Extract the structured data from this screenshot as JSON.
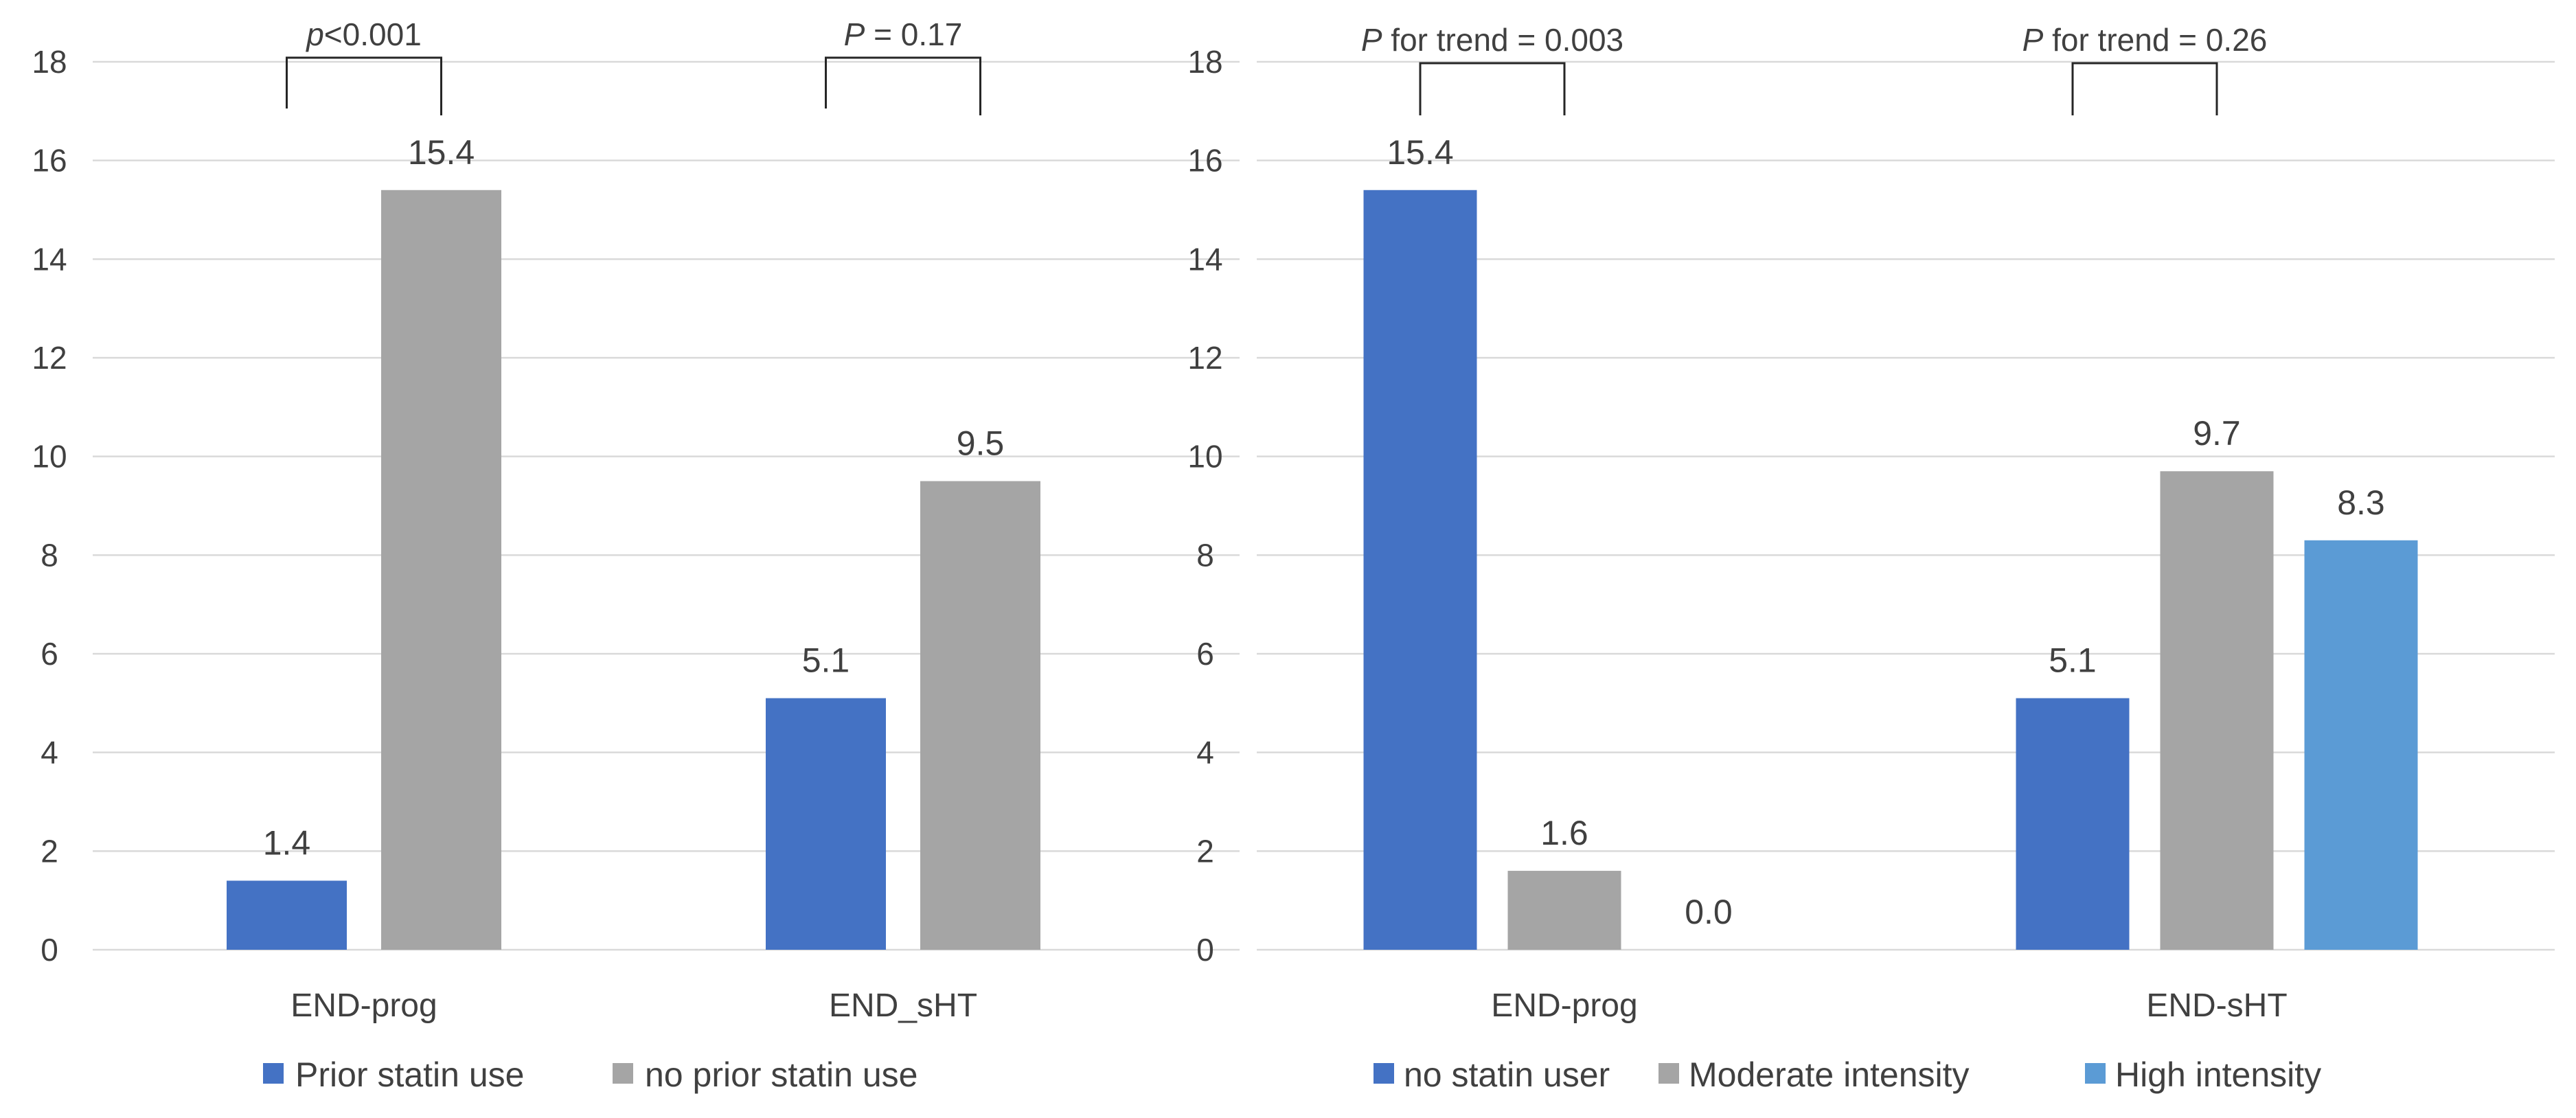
{
  "colors": {
    "blue": "#4472c4",
    "gray": "#a5a5a5",
    "light_blue": "#5b9bd5",
    "text": "#404040",
    "grid": "#d9d9d9"
  },
  "chart_data": [
    {
      "type": "bar",
      "title": "",
      "xlabel": "",
      "ylabel": "",
      "ylim": [
        0,
        18
      ],
      "yticks": [
        "0",
        "2",
        "4",
        "6",
        "8",
        "10",
        "12",
        "14",
        "16",
        "18"
      ],
      "grid": true,
      "legend_position": "bottom",
      "categories": [
        "END-prog",
        "END_sHT"
      ],
      "series": [
        {
          "name": "Prior statin use",
          "color": "#4472c4",
          "values": [
            1.4,
            5.1
          ],
          "labels": [
            "1.4",
            "5.1"
          ]
        },
        {
          "name": "no prior statin use",
          "color": "#a5a5a5",
          "values": [
            15.4,
            9.5
          ],
          "labels": [
            "15.4",
            "9.5"
          ]
        }
      ],
      "annotations": [
        {
          "category": "END-prog",
          "prefix": "p",
          "text": "<0.001"
        },
        {
          "category": "END_sHT",
          "prefix": "P",
          "text": " = 0.17"
        }
      ]
    },
    {
      "type": "bar",
      "title": "",
      "xlabel": "",
      "ylabel": "",
      "ylim": [
        0,
        18
      ],
      "yticks": [
        "0",
        "2",
        "4",
        "6",
        "8",
        "10",
        "12",
        "14",
        "16",
        "18"
      ],
      "grid": true,
      "legend_position": "bottom",
      "categories": [
        "END-prog",
        "END-sHT"
      ],
      "series": [
        {
          "name": "no statin user",
          "color": "#4472c4",
          "values": [
            15.4,
            5.1
          ],
          "labels": [
            "15.4",
            "5.1"
          ]
        },
        {
          "name": "Moderate intensity",
          "color": "#a5a5a5",
          "values": [
            1.6,
            9.7
          ],
          "labels": [
            "1.6",
            "9.7"
          ]
        },
        {
          "name": "High intensity",
          "color": "#5b9bd5",
          "values": [
            0.0,
            8.3
          ],
          "labels": [
            "0.0",
            "8.3"
          ]
        }
      ],
      "annotations": [
        {
          "category": "END-prog",
          "prefix": "P",
          "text": " for trend = 0.003"
        },
        {
          "category": "END-sHT",
          "prefix": "P",
          "text": " for trend = 0.26"
        }
      ]
    }
  ]
}
